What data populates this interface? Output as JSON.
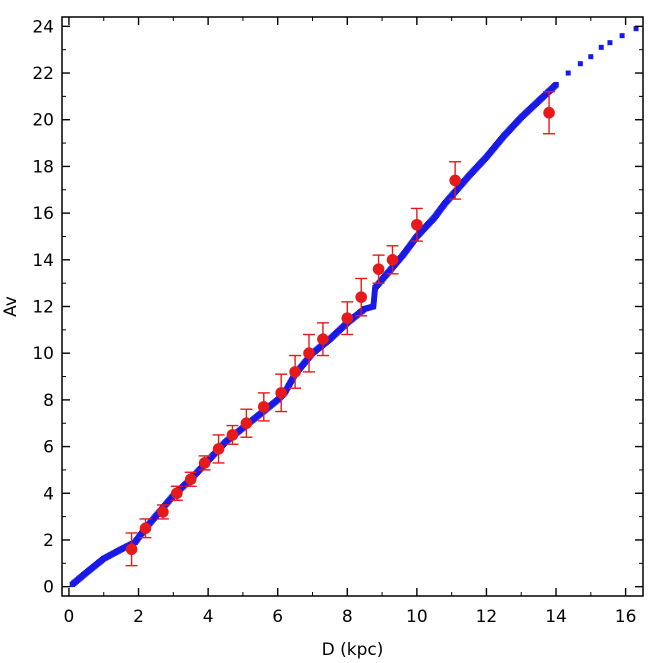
{
  "chart_data": {
    "type": "scatter",
    "title": "",
    "xlabel": "D (kpc)",
    "ylabel": "Av",
    "xlim": [
      -0.2,
      16.5
    ],
    "ylim": [
      -0.4,
      24.4
    ],
    "x_ticks": [
      0,
      2,
      4,
      6,
      8,
      10,
      12,
      14,
      16
    ],
    "y_ticks": [
      0,
      2,
      4,
      6,
      8,
      10,
      12,
      14,
      16,
      18,
      20,
      22,
      24
    ],
    "grid": false,
    "legend": "none",
    "colors": {
      "model": "#1a1ae6",
      "observed": "#e61a1a"
    },
    "series": [
      {
        "marker": "square",
        "curve_points": [
          [
            0.1,
            0.1
          ],
          [
            0.5,
            0.6
          ],
          [
            1.0,
            1.2
          ],
          [
            1.5,
            1.6
          ],
          [
            1.9,
            1.9
          ],
          [
            2.2,
            2.5
          ],
          [
            2.6,
            3.2
          ],
          [
            3.0,
            3.9
          ],
          [
            3.5,
            4.6
          ],
          [
            4.0,
            5.4
          ],
          [
            4.5,
            6.2
          ],
          [
            5.0,
            6.8
          ],
          [
            5.5,
            7.4
          ],
          [
            6.0,
            8.0
          ],
          [
            6.2,
            8.3
          ],
          [
            6.5,
            9.1
          ],
          [
            7.0,
            10.0
          ],
          [
            7.5,
            10.6
          ],
          [
            8.0,
            11.3
          ],
          [
            8.5,
            11.9
          ],
          [
            8.75,
            12.0
          ],
          [
            8.8,
            12.8
          ],
          [
            9.2,
            13.5
          ],
          [
            9.6,
            14.2
          ],
          [
            10.0,
            15.0
          ],
          [
            10.5,
            15.8
          ],
          [
            10.8,
            16.4
          ],
          [
            11.5,
            17.6
          ],
          [
            12.0,
            18.4
          ],
          [
            12.5,
            19.3
          ],
          [
            13.0,
            20.1
          ],
          [
            13.5,
            20.8
          ],
          [
            14.0,
            21.5
          ]
        ],
        "sparse_points": [
          [
            14.35,
            22.0
          ],
          [
            14.7,
            22.4
          ],
          [
            15.0,
            22.7
          ],
          [
            15.3,
            23.1
          ],
          [
            15.55,
            23.3
          ],
          [
            15.9,
            23.6
          ],
          [
            16.3,
            23.9
          ]
        ]
      },
      {
        "marker": "circle",
        "points": [
          {
            "x": 1.8,
            "y": 1.6,
            "err": 0.7
          },
          {
            "x": 2.2,
            "y": 2.5,
            "err": 0.4
          },
          {
            "x": 2.7,
            "y": 3.2,
            "err": 0.3
          },
          {
            "x": 3.1,
            "y": 4.0,
            "err": 0.3
          },
          {
            "x": 3.5,
            "y": 4.6,
            "err": 0.3
          },
          {
            "x": 3.9,
            "y": 5.3,
            "err": 0.3
          },
          {
            "x": 4.3,
            "y": 5.9,
            "err": 0.6
          },
          {
            "x": 4.7,
            "y": 6.5,
            "err": 0.4
          },
          {
            "x": 5.1,
            "y": 7.0,
            "err": 0.6
          },
          {
            "x": 5.6,
            "y": 7.7,
            "err": 0.6
          },
          {
            "x": 6.1,
            "y": 8.3,
            "err": 0.8
          },
          {
            "x": 6.5,
            "y": 9.2,
            "err": 0.7
          },
          {
            "x": 6.9,
            "y": 10.0,
            "err": 0.8
          },
          {
            "x": 7.3,
            "y": 10.6,
            "err": 0.7
          },
          {
            "x": 8.0,
            "y": 11.5,
            "err": 0.7
          },
          {
            "x": 8.4,
            "y": 12.4,
            "err": 0.8
          },
          {
            "x": 8.9,
            "y": 13.6,
            "err": 0.6
          },
          {
            "x": 9.3,
            "y": 14.0,
            "err": 0.6
          },
          {
            "x": 10.0,
            "y": 15.5,
            "err": 0.7
          },
          {
            "x": 11.1,
            "y": 17.4,
            "err": 0.8
          },
          {
            "x": 13.8,
            "y": 20.3,
            "err": 0.9
          }
        ]
      }
    ]
  }
}
